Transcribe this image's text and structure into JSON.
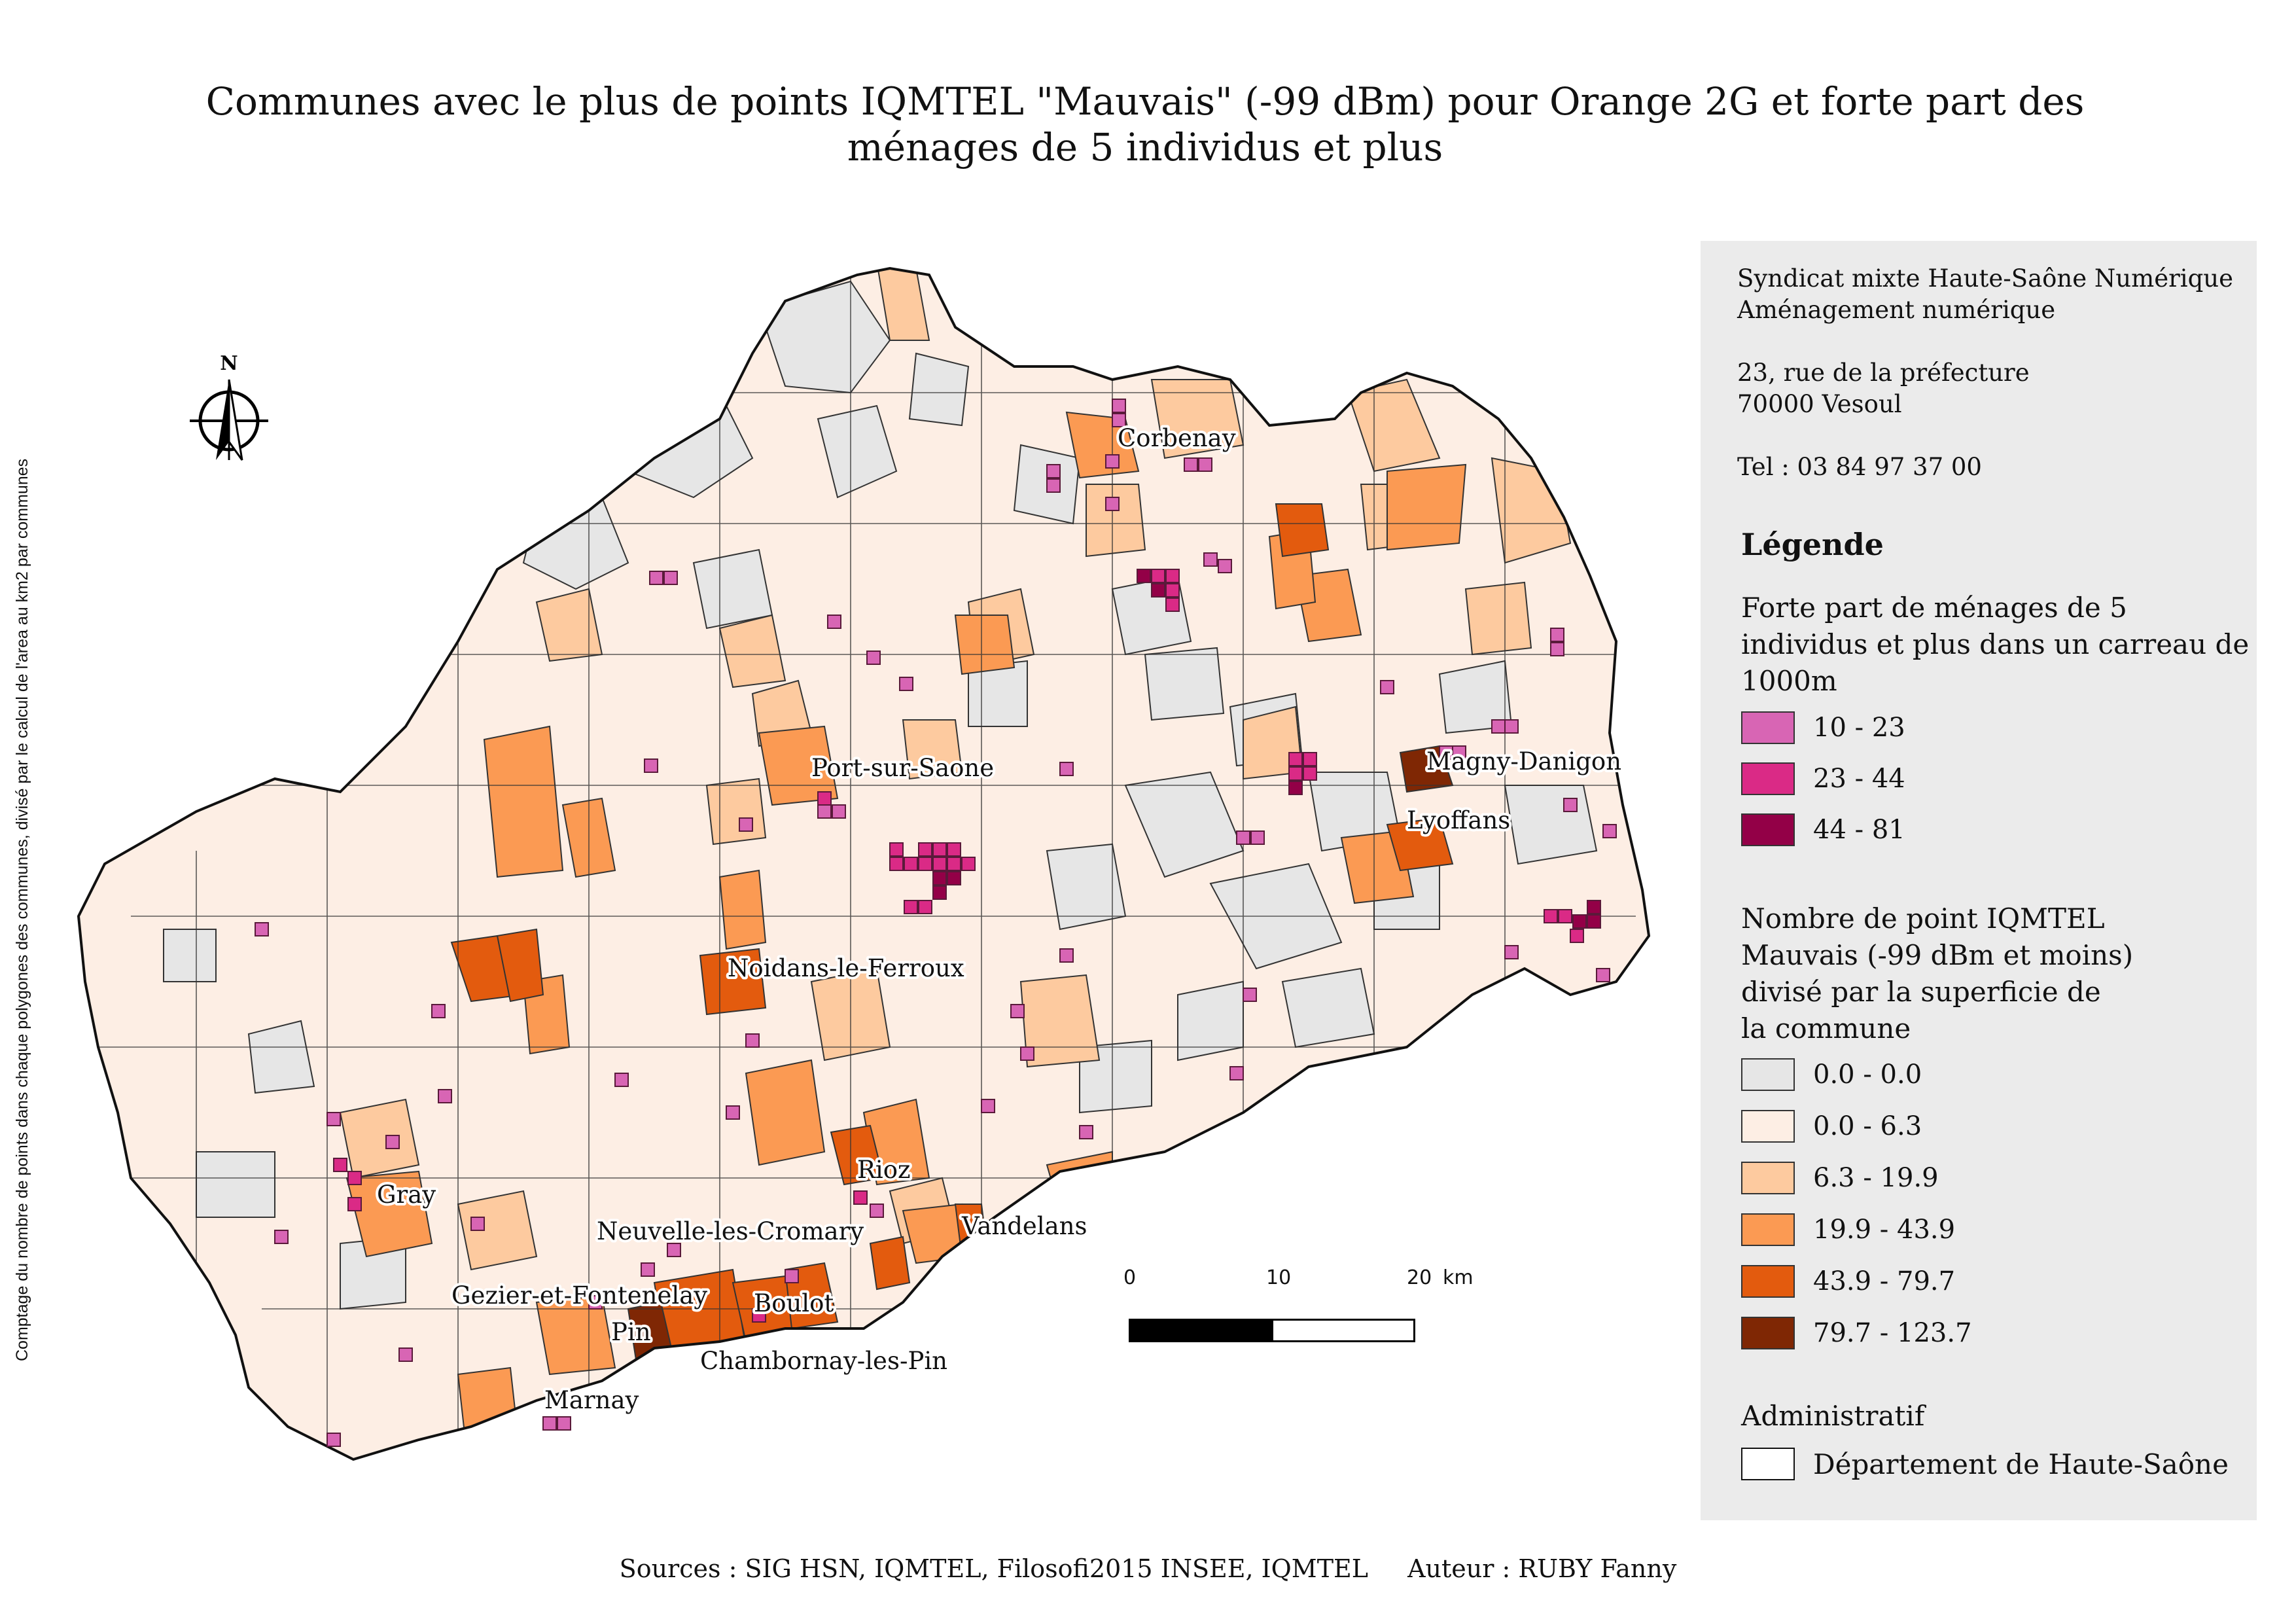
{
  "title": "Communes avec le plus de points IQMTEL \"Mauvais\" (-99 dBm) pour Orange 2G et forte part des ménages de 5 individus et plus",
  "side_note": "Comptage du nombre de points dans chaque polygones des communes, divisé par le calcul de l'area au km2 par communes",
  "org": {
    "line1": "Syndicat mixte Haute-Saône Numérique",
    "line2": "Aménagement numérique",
    "address1": "23, rue de la préfecture",
    "address2": "70000 Vesoul",
    "phone": "Tel : 03 84 97 37 00"
  },
  "legend": {
    "title": "Légende",
    "households": {
      "title": "Forte part de ménages de 5 individus et plus dans un carreau de 1000m",
      "classes": [
        {
          "label": "10 - 23",
          "color": "#d865b4"
        },
        {
          "label": "23 - 44",
          "color": "#da2a86"
        },
        {
          "label": "44 - 81",
          "color": "#930047"
        }
      ]
    },
    "iqmtel": {
      "title": "Nombre de point IQMTEL Mauvais (-99 dBm et moins) divisé par la superficie de la commune",
      "classes": [
        {
          "label": "0.0 - 0.0",
          "color": "#e6e6e6"
        },
        {
          "label": "0.0 - 6.3",
          "color": "#fdeee4"
        },
        {
          "label": "6.3 - 19.9",
          "color": "#fdca9f"
        },
        {
          "label": "19.9 - 43.9",
          "color": "#fb9a53"
        },
        {
          "label": "43.9 - 79.7",
          "color": "#e35b0e"
        },
        {
          "label": "79.7 - 123.7",
          "color": "#7f2704"
        }
      ]
    },
    "admin": {
      "title": "Administratif",
      "item": "Département de Haute-Saône",
      "color": "#ffffff"
    }
  },
  "north_label": "N",
  "scale": {
    "ticks": [
      "0",
      "10",
      "20"
    ],
    "unit": "km"
  },
  "places": {
    "corbenay": "Corbenay",
    "port_sur_saone": "Port-sur-Saone",
    "magny_danigon": "Magny-Danigon",
    "lyoffans": "Lyoffans",
    "noidans": "Noidans-le-Ferroux",
    "rioz": "Rioz",
    "vandelans": "Vandelans",
    "gray": "Gray",
    "neuvelle": "Neuvelle-les-Cromary",
    "gezier": "Gezier-et-Fontenelay",
    "boulot": "Boulot",
    "pin": "Pin",
    "chambornay": "Chambornay-les-Pin",
    "marnay": "Marnay"
  },
  "footer": {
    "sources": "Sources : SIG HSN, IQMTEL, Filosofi2015 INSEE, IQMTEL",
    "author": "Auteur : RUBY Fanny"
  }
}
